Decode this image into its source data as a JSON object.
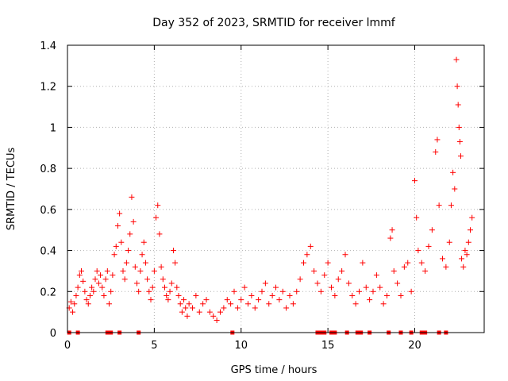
{
  "chart_data": {
    "type": "scatter",
    "title": "Day 352 of 2023, SRMTID for receiver lmmf",
    "xlabel": "GPS time / hours",
    "ylabel": "SRMTID / TECUs",
    "xlim": [
      0,
      24
    ],
    "ylim": [
      0,
      1.4
    ],
    "xticks": [
      0,
      5,
      10,
      15,
      20
    ],
    "xtick_labels": [
      "0",
      "5",
      "10",
      "15",
      "20"
    ],
    "yticks": [
      0,
      0.2,
      0.4,
      0.6,
      0.8,
      1.0,
      1.2,
      1.4
    ],
    "ytick_labels": [
      "0",
      "0.2",
      "0.4",
      "0.6",
      "0.8",
      "1",
      "1.2",
      "1.4"
    ],
    "grid": true,
    "series": [
      {
        "name": "SRMTID",
        "marker": "+",
        "color": "#ff0000",
        "points": [
          [
            0.1,
            0.12
          ],
          [
            0.2,
            0.15
          ],
          [
            0.3,
            0.1
          ],
          [
            0.4,
            0.14
          ],
          [
            0.5,
            0.18
          ],
          [
            0.6,
            0.22
          ],
          [
            0.7,
            0.28
          ],
          [
            0.8,
            0.3
          ],
          [
            0.9,
            0.25
          ],
          [
            1.0,
            0.2
          ],
          [
            1.1,
            0.16
          ],
          [
            1.2,
            0.14
          ],
          [
            1.3,
            0.18
          ],
          [
            1.4,
            0.22
          ],
          [
            1.5,
            0.2
          ],
          [
            1.6,
            0.26
          ],
          [
            1.7,
            0.3
          ],
          [
            1.8,
            0.24
          ],
          [
            1.9,
            0.28
          ],
          [
            2.0,
            0.22
          ],
          [
            2.1,
            0.18
          ],
          [
            2.2,
            0.26
          ],
          [
            2.3,
            0.3
          ],
          [
            2.4,
            0.14
          ],
          [
            2.5,
            0.2
          ],
          [
            2.6,
            0.28
          ],
          [
            2.7,
            0.38
          ],
          [
            2.8,
            0.42
          ],
          [
            2.9,
            0.52
          ],
          [
            3.0,
            0.58
          ],
          [
            3.1,
            0.44
          ],
          [
            3.2,
            0.3
          ],
          [
            3.3,
            0.26
          ],
          [
            3.4,
            0.34
          ],
          [
            3.5,
            0.4
          ],
          [
            3.6,
            0.48
          ],
          [
            3.7,
            0.66
          ],
          [
            3.8,
            0.54
          ],
          [
            3.9,
            0.32
          ],
          [
            4.0,
            0.24
          ],
          [
            4.1,
            0.2
          ],
          [
            4.2,
            0.3
          ],
          [
            4.3,
            0.38
          ],
          [
            4.4,
            0.44
          ],
          [
            4.5,
            0.34
          ],
          [
            4.6,
            0.26
          ],
          [
            4.7,
            0.2
          ],
          [
            4.8,
            0.16
          ],
          [
            4.9,
            0.22
          ],
          [
            5.0,
            0.3
          ],
          [
            5.1,
            0.56
          ],
          [
            5.2,
            0.62
          ],
          [
            5.3,
            0.48
          ],
          [
            5.4,
            0.32
          ],
          [
            5.5,
            0.26
          ],
          [
            5.6,
            0.22
          ],
          [
            5.7,
            0.18
          ],
          [
            5.8,
            0.16
          ],
          [
            5.9,
            0.2
          ],
          [
            6.0,
            0.24
          ],
          [
            6.1,
            0.4
          ],
          [
            6.2,
            0.34
          ],
          [
            6.3,
            0.22
          ],
          [
            6.4,
            0.18
          ],
          [
            6.5,
            0.14
          ],
          [
            6.6,
            0.1
          ],
          [
            6.7,
            0.16
          ],
          [
            6.8,
            0.12
          ],
          [
            6.9,
            0.08
          ],
          [
            7.0,
            0.14
          ],
          [
            7.2,
            0.12
          ],
          [
            7.4,
            0.18
          ],
          [
            7.6,
            0.1
          ],
          [
            7.8,
            0.14
          ],
          [
            8.0,
            0.16
          ],
          [
            8.2,
            0.1
          ],
          [
            8.4,
            0.08
          ],
          [
            8.6,
            0.06
          ],
          [
            8.8,
            0.1
          ],
          [
            9.0,
            0.12
          ],
          [
            9.2,
            0.16
          ],
          [
            9.4,
            0.14
          ],
          [
            9.6,
            0.2
          ],
          [
            9.8,
            0.12
          ],
          [
            10.0,
            0.16
          ],
          [
            10.2,
            0.22
          ],
          [
            10.4,
            0.14
          ],
          [
            10.6,
            0.18
          ],
          [
            10.8,
            0.12
          ],
          [
            11.0,
            0.16
          ],
          [
            11.2,
            0.2
          ],
          [
            11.4,
            0.24
          ],
          [
            11.6,
            0.14
          ],
          [
            11.8,
            0.18
          ],
          [
            12.0,
            0.22
          ],
          [
            12.2,
            0.16
          ],
          [
            12.4,
            0.2
          ],
          [
            12.6,
            0.12
          ],
          [
            12.8,
            0.18
          ],
          [
            13.0,
            0.14
          ],
          [
            13.2,
            0.2
          ],
          [
            13.4,
            0.26
          ],
          [
            13.6,
            0.34
          ],
          [
            13.8,
            0.38
          ],
          [
            14.0,
            0.42
          ],
          [
            14.2,
            0.3
          ],
          [
            14.4,
            0.24
          ],
          [
            14.6,
            0.2
          ],
          [
            14.8,
            0.28
          ],
          [
            15.0,
            0.34
          ],
          [
            15.2,
            0.22
          ],
          [
            15.4,
            0.18
          ],
          [
            15.6,
            0.26
          ],
          [
            15.8,
            0.3
          ],
          [
            16.0,
            0.38
          ],
          [
            16.2,
            0.24
          ],
          [
            16.4,
            0.18
          ],
          [
            16.6,
            0.14
          ],
          [
            16.8,
            0.2
          ],
          [
            17.0,
            0.34
          ],
          [
            17.2,
            0.22
          ],
          [
            17.4,
            0.16
          ],
          [
            17.6,
            0.2
          ],
          [
            17.8,
            0.28
          ],
          [
            18.0,
            0.22
          ],
          [
            18.2,
            0.14
          ],
          [
            18.4,
            0.18
          ],
          [
            18.6,
            0.46
          ],
          [
            18.7,
            0.5
          ],
          [
            18.8,
            0.3
          ],
          [
            19.0,
            0.24
          ],
          [
            19.2,
            0.18
          ],
          [
            19.4,
            0.32
          ],
          [
            19.6,
            0.34
          ],
          [
            19.8,
            0.2
          ],
          [
            20.0,
            0.74
          ],
          [
            20.1,
            0.56
          ],
          [
            20.2,
            0.4
          ],
          [
            20.4,
            0.34
          ],
          [
            20.6,
            0.3
          ],
          [
            20.8,
            0.42
          ],
          [
            21.0,
            0.5
          ],
          [
            21.2,
            0.88
          ],
          [
            21.3,
            0.94
          ],
          [
            21.4,
            0.62
          ],
          [
            21.6,
            0.36
          ],
          [
            21.8,
            0.32
          ],
          [
            22.0,
            0.44
          ],
          [
            22.1,
            0.62
          ],
          [
            22.2,
            0.78
          ],
          [
            22.3,
            0.7
          ],
          [
            22.4,
            1.33
          ],
          [
            22.45,
            1.2
          ],
          [
            22.5,
            1.11
          ],
          [
            22.55,
            1.0
          ],
          [
            22.6,
            0.93
          ],
          [
            22.65,
            0.86
          ],
          [
            22.7,
            0.36
          ],
          [
            22.8,
            0.32
          ],
          [
            22.9,
            0.4
          ],
          [
            23.0,
            0.38
          ],
          [
            23.1,
            0.44
          ],
          [
            23.2,
            0.5
          ],
          [
            23.3,
            0.56
          ]
        ]
      }
    ],
    "zero_markers": [
      0.1,
      0.6,
      2.3,
      2.5,
      3.0,
      4.1,
      9.5,
      14.4,
      14.6,
      14.8,
      15.2,
      15.4,
      16.1,
      16.7,
      16.9,
      17.4,
      18.5,
      19.2,
      19.8,
      20.4,
      20.6,
      21.4,
      21.8
    ]
  }
}
